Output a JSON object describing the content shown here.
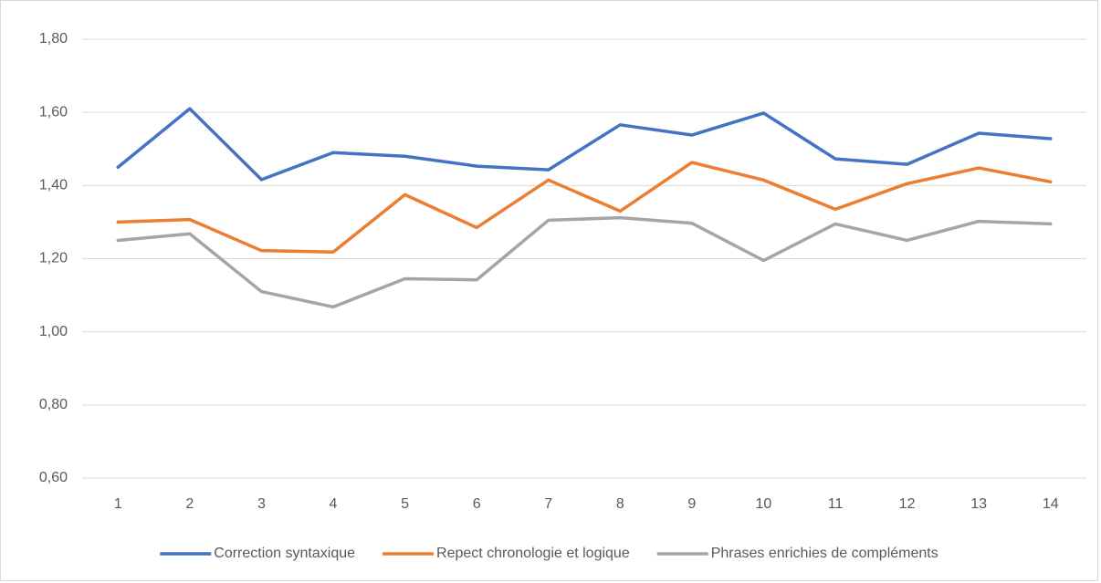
{
  "chart_data": {
    "type": "line",
    "categories": [
      1,
      2,
      3,
      4,
      5,
      6,
      7,
      8,
      9,
      10,
      11,
      12,
      13,
      14
    ],
    "series": [
      {
        "name": "Correction syntaxique",
        "color": "#4472c4",
        "values": [
          1.45,
          1.61,
          1.416,
          1.49,
          1.48,
          1.453,
          1.443,
          1.566,
          1.538,
          1.598,
          1.473,
          1.458,
          1.543,
          1.528
        ]
      },
      {
        "name": "Repect chronologie et logique",
        "color": "#ed7d31",
        "values": [
          1.3,
          1.307,
          1.222,
          1.218,
          1.375,
          1.285,
          1.415,
          1.33,
          1.463,
          1.415,
          1.335,
          1.405,
          1.448,
          1.41
        ]
      },
      {
        "name": "Phrases enrichies de compléments",
        "color": "#a5a5a5",
        "values": [
          1.25,
          1.268,
          1.11,
          1.068,
          1.145,
          1.142,
          1.305,
          1.312,
          1.297,
          1.195,
          1.295,
          1.25,
          1.302,
          1.295
        ]
      }
    ],
    "ylim": [
      0.6,
      1.8
    ],
    "yticks": [
      {
        "value": 0.6,
        "label": "0,60"
      },
      {
        "value": 0.8,
        "label": "0,80"
      },
      {
        "value": 1.0,
        "label": "1,00"
      },
      {
        "value": 1.2,
        "label": "1,20"
      },
      {
        "value": 1.4,
        "label": "1,40"
      },
      {
        "value": 1.6,
        "label": "1,60"
      },
      {
        "value": 1.8,
        "label": "1,80"
      }
    ],
    "grid": true,
    "legend": "bottom"
  }
}
